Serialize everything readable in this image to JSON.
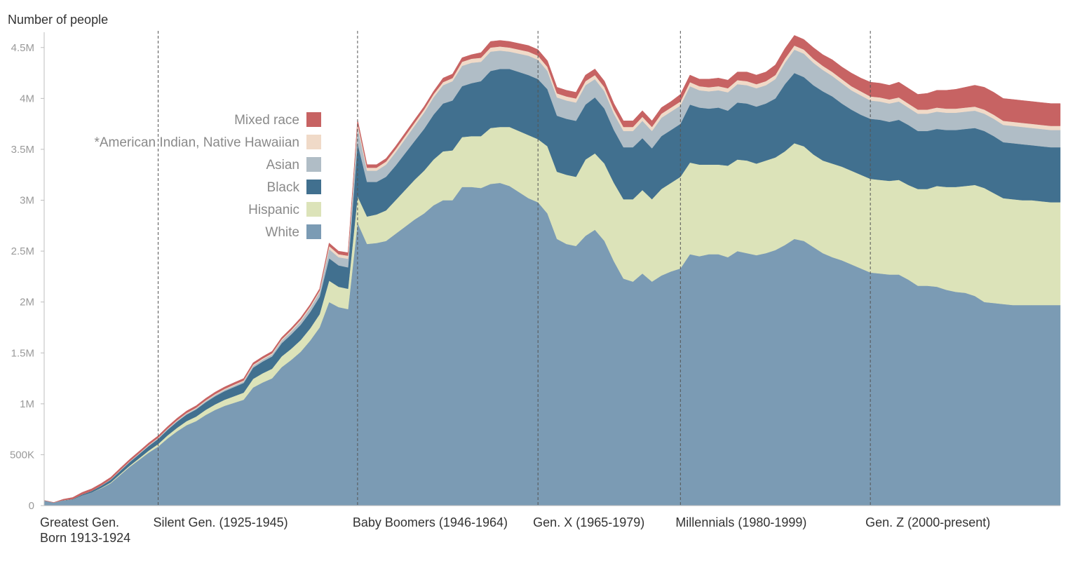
{
  "colors": {
    "White": "#7b9bb4",
    "Hispanic": "#dce3b9",
    "Black": "#41708f",
    "Asian": "#b0bdc6",
    "American": "#f0dac8",
    "Mixed": "#c76363"
  },
  "chart_data": {
    "type": "area",
    "stacked": true,
    "ylabel": "Number of people",
    "ylim": [
      0,
      4650000
    ],
    "yticks": [
      0,
      500000,
      1000000,
      1500000,
      2000000,
      2500000,
      3000000,
      3500000,
      4000000,
      4500000
    ],
    "ytick_labels": [
      "0",
      "500K",
      "1M",
      "1.5M",
      "2M",
      "2.5M",
      "3M",
      "3.5M",
      "4M",
      "4.5M"
    ],
    "xlim": [
      1913,
      2020
    ],
    "x": [
      1913,
      1914,
      1915,
      1916,
      1917,
      1918,
      1919,
      1920,
      1921,
      1922,
      1923,
      1924,
      1925,
      1926,
      1927,
      1928,
      1929,
      1930,
      1931,
      1932,
      1933,
      1934,
      1935,
      1936,
      1937,
      1938,
      1939,
      1940,
      1941,
      1942,
      1943,
      1944,
      1945,
      1946,
      1947,
      1948,
      1949,
      1950,
      1951,
      1952,
      1953,
      1954,
      1955,
      1956,
      1957,
      1958,
      1959,
      1960,
      1961,
      1962,
      1963,
      1964,
      1965,
      1966,
      1967,
      1968,
      1969,
      1970,
      1971,
      1972,
      1973,
      1974,
      1975,
      1976,
      1977,
      1978,
      1979,
      1980,
      1981,
      1982,
      1983,
      1984,
      1985,
      1986,
      1987,
      1988,
      1989,
      1990,
      1991,
      1992,
      1993,
      1994,
      1995,
      1996,
      1997,
      1998,
      1999,
      2000,
      2001,
      2002,
      2003,
      2004,
      2005,
      2006,
      2007,
      2008,
      2009,
      2010,
      2011,
      2012,
      2013,
      2014,
      2015,
      2016,
      2017,
      2018,
      2019,
      2020
    ],
    "legend": [
      "Mixed race",
      "*American Indian, Native Hawaiian",
      "Asian",
      "Black",
      "Hispanic",
      "White"
    ],
    "series": [
      {
        "name": "White",
        "color_key": "White",
        "values": [
          50000,
          30000,
          50000,
          60000,
          100000,
          130000,
          170000,
          220000,
          300000,
          380000,
          450000,
          520000,
          580000,
          660000,
          730000,
          790000,
          830000,
          890000,
          940000,
          980000,
          1010000,
          1040000,
          1160000,
          1210000,
          1250000,
          1360000,
          1430000,
          1510000,
          1620000,
          1750000,
          2000000,
          1950000,
          1930000,
          2780000,
          2570000,
          2580000,
          2600000,
          2670000,
          2740000,
          2810000,
          2870000,
          2950000,
          3000000,
          3000000,
          3130000,
          3130000,
          3120000,
          3160000,
          3170000,
          3140000,
          3080000,
          3020000,
          2980000,
          2870000,
          2620000,
          2570000,
          2550000,
          2650000,
          2710000,
          2600000,
          2400000,
          2230000,
          2200000,
          2280000,
          2200000,
          2260000,
          2300000,
          2330000,
          2470000,
          2450000,
          2470000,
          2470000,
          2440000,
          2500000,
          2480000,
          2460000,
          2480000,
          2510000,
          2560000,
          2620000,
          2600000,
          2540000,
          2480000,
          2440000,
          2410000,
          2370000,
          2330000,
          2290000,
          2280000,
          2270000,
          2270000,
          2220000,
          2160000,
          2160000,
          2150000,
          2120000,
          2100000,
          2090000,
          2060000,
          2000000,
          1990000,
          1980000,
          1970000,
          1970000,
          1970000,
          1970000,
          1970000,
          1970000
        ]
      },
      {
        "name": "Hispanic",
        "color_key": "Hispanic",
        "values": [
          0,
          0,
          0,
          0,
          0,
          0,
          5000,
          8000,
          10000,
          12000,
          15000,
          20000,
          25000,
          30000,
          35000,
          40000,
          45000,
          50000,
          55000,
          60000,
          65000,
          70000,
          85000,
          90000,
          95000,
          105000,
          110000,
          115000,
          120000,
          130000,
          210000,
          200000,
          200000,
          260000,
          270000,
          280000,
          300000,
          330000,
          360000,
          390000,
          420000,
          450000,
          480000,
          490000,
          490000,
          500000,
          510000,
          550000,
          550000,
          580000,
          600000,
          620000,
          620000,
          660000,
          660000,
          680000,
          680000,
          750000,
          750000,
          760000,
          770000,
          780000,
          810000,
          820000,
          810000,
          850000,
          870000,
          900000,
          900000,
          900000,
          880000,
          880000,
          900000,
          900000,
          910000,
          900000,
          910000,
          910000,
          920000,
          940000,
          930000,
          910000,
          910000,
          920000,
          920000,
          920000,
          920000,
          920000,
          920000,
          920000,
          930000,
          930000,
          950000,
          950000,
          990000,
          1010000,
          1030000,
          1050000,
          1090000,
          1120000,
          1080000,
          1040000,
          1040000,
          1030000,
          1030000,
          1020000,
          1010000,
          1010000
        ]
      },
      {
        "name": "Black",
        "color_key": "Black",
        "values": [
          0,
          0,
          3000,
          5000,
          10000,
          15000,
          20000,
          25000,
          30000,
          35000,
          40000,
          45000,
          50000,
          55000,
          60000,
          65000,
          70000,
          75000,
          80000,
          85000,
          90000,
          95000,
          110000,
          115000,
          120000,
          130000,
          140000,
          150000,
          160000,
          170000,
          220000,
          210000,
          210000,
          520000,
          340000,
          320000,
          330000,
          340000,
          360000,
          380000,
          410000,
          440000,
          470000,
          490000,
          500000,
          520000,
          540000,
          560000,
          570000,
          570000,
          580000,
          590000,
          590000,
          560000,
          550000,
          550000,
          550000,
          540000,
          550000,
          540000,
          520000,
          510000,
          510000,
          510000,
          500000,
          520000,
          520000,
          520000,
          570000,
          560000,
          550000,
          560000,
          540000,
          560000,
          560000,
          560000,
          560000,
          580000,
          660000,
          690000,
          680000,
          680000,
          680000,
          660000,
          620000,
          600000,
          590000,
          590000,
          590000,
          580000,
          590000,
          590000,
          570000,
          570000,
          560000,
          560000,
          560000,
          560000,
          560000,
          560000,
          560000,
          550000,
          550000,
          550000,
          540000,
          540000,
          540000,
          540000
        ]
      },
      {
        "name": "Asian",
        "color_key": "Asian",
        "values": [
          0,
          0,
          0,
          0,
          0,
          0,
          2000,
          3000,
          4000,
          5000,
          5000,
          6000,
          6000,
          7000,
          8000,
          9000,
          10000,
          11000,
          12000,
          13000,
          14000,
          15000,
          18000,
          19000,
          20000,
          25000,
          30000,
          35000,
          40000,
          45000,
          90000,
          80000,
          85000,
          160000,
          110000,
          110000,
          120000,
          130000,
          140000,
          150000,
          160000,
          170000,
          180000,
          190000,
          200000,
          200000,
          190000,
          190000,
          180000,
          170000,
          180000,
          190000,
          190000,
          180000,
          180000,
          180000,
          180000,
          190000,
          180000,
          170000,
          160000,
          160000,
          160000,
          170000,
          170000,
          180000,
          180000,
          180000,
          180000,
          170000,
          170000,
          170000,
          180000,
          180000,
          180000,
          180000,
          180000,
          190000,
          210000,
          230000,
          230000,
          220000,
          210000,
          200000,
          200000,
          190000,
          190000,
          180000,
          180000,
          180000,
          180000,
          170000,
          170000,
          170000,
          170000,
          170000,
          170000,
          170000,
          170000,
          170000,
          170000,
          170000,
          170000,
          170000,
          170000,
          170000,
          170000,
          170000
        ]
      },
      {
        "name": "American Indian, Native Hawaiian",
        "color_key": "American",
        "values": [
          0,
          0,
          0,
          0,
          0,
          0,
          1000,
          2000,
          3000,
          3000,
          4000,
          5000,
          5000,
          5000,
          6000,
          6000,
          7000,
          7000,
          8000,
          8000,
          9000,
          9000,
          10000,
          10000,
          11000,
          12000,
          13000,
          14000,
          15000,
          16000,
          30000,
          30000,
          30000,
          40000,
          30000,
          30000,
          30000,
          30000,
          30000,
          30000,
          30000,
          30000,
          30000,
          30000,
          40000,
          40000,
          40000,
          40000,
          40000,
          40000,
          40000,
          40000,
          40000,
          40000,
          40000,
          40000,
          40000,
          40000,
          40000,
          40000,
          40000,
          40000,
          40000,
          40000,
          40000,
          40000,
          40000,
          40000,
          40000,
          40000,
          40000,
          40000,
          40000,
          40000,
          40000,
          40000,
          40000,
          40000,
          40000,
          40000,
          40000,
          40000,
          40000,
          40000,
          40000,
          40000,
          40000,
          40000,
          40000,
          40000,
          40000,
          40000,
          40000,
          40000,
          40000,
          40000,
          40000,
          40000,
          40000,
          40000,
          40000,
          40000,
          40000,
          40000,
          40000,
          40000,
          40000,
          40000
        ]
      },
      {
        "name": "Mixed race",
        "color_key": "Mixed",
        "values": [
          0,
          0,
          10000,
          15000,
          20000,
          20000,
          20000,
          20000,
          20000,
          20000,
          20000,
          20000,
          20000,
          20000,
          20000,
          20000,
          20000,
          20000,
          20000,
          20000,
          20000,
          20000,
          20000,
          20000,
          20000,
          20000,
          20000,
          20000,
          20000,
          20000,
          30000,
          30000,
          30000,
          30000,
          30000,
          30000,
          30000,
          30000,
          30000,
          30000,
          30000,
          30000,
          40000,
          40000,
          40000,
          40000,
          50000,
          60000,
          60000,
          60000,
          60000,
          60000,
          60000,
          60000,
          60000,
          60000,
          60000,
          60000,
          60000,
          60000,
          60000,
          60000,
          60000,
          60000,
          60000,
          60000,
          60000,
          70000,
          70000,
          70000,
          80000,
          80000,
          80000,
          80000,
          90000,
          90000,
          90000,
          100000,
          100000,
          100000,
          100000,
          110000,
          110000,
          120000,
          120000,
          130000,
          130000,
          140000,
          140000,
          140000,
          150000,
          150000,
          150000,
          160000,
          170000,
          180000,
          190000,
          200000,
          210000,
          220000,
          220000,
          220000,
          220000,
          220000,
          220000,
          220000,
          220000,
          220000
        ]
      }
    ],
    "generations": [
      {
        "start": 1913,
        "label_lines": [
          "Greatest Gen.",
          "Born 1913-1924"
        ]
      },
      {
        "start": 1925,
        "label_lines": [
          "Silent Gen. (1925-1945)"
        ]
      },
      {
        "start": 1946,
        "label_lines": [
          "Baby Boomers (1946-1964)"
        ]
      },
      {
        "start": 1965,
        "label_lines": [
          "Gen. X (1965-1979)"
        ]
      },
      {
        "start": 1980,
        "label_lines": [
          "Millennials (1980-1999)"
        ]
      },
      {
        "start": 2000,
        "label_lines": [
          "Gen. Z (2000-present)"
        ]
      }
    ]
  }
}
